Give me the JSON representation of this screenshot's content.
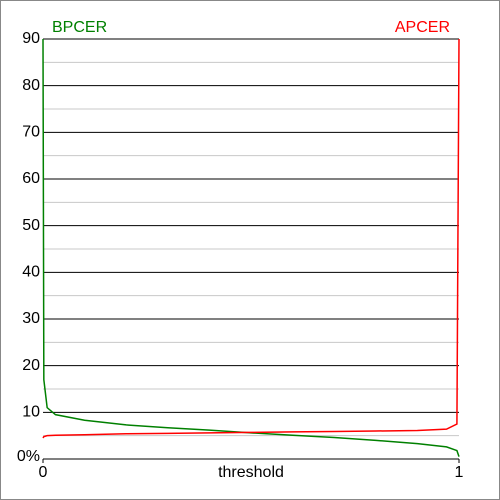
{
  "chart_data": {
    "type": "line",
    "xlabel": "threshold",
    "x": [
      0,
      0.002,
      0.01,
      0.03,
      0.1,
      0.2,
      0.3,
      0.4,
      0.5,
      0.6,
      0.7,
      0.8,
      0.9,
      0.97,
      0.995,
      1
    ],
    "series": [
      {
        "name": "BPCER",
        "color": "#008000",
        "values": [
          90,
          17,
          11,
          9.5,
          8.3,
          7.3,
          6.7,
          6.2,
          5.6,
          5.1,
          4.6,
          4.0,
          3.3,
          2.6,
          1.8,
          0.5
        ]
      },
      {
        "name": "APCER",
        "color": "#ff0000",
        "values": [
          4.5,
          4.8,
          5.0,
          5.1,
          5.2,
          5.4,
          5.5,
          5.6,
          5.7,
          5.8,
          5.9,
          6.0,
          6.1,
          6.4,
          7.5,
          90
        ]
      }
    ],
    "xlim": [
      0,
      1
    ],
    "xticks": [
      0,
      1
    ],
    "ylim": [
      0,
      90
    ],
    "yticks": [
      {
        "value": 0,
        "label": "0%"
      },
      10,
      20,
      30,
      40,
      50,
      60,
      70,
      80,
      90
    ],
    "minor_yticks": [
      5,
      15,
      25,
      35,
      45,
      55,
      65,
      75,
      85
    ],
    "grid": true
  }
}
